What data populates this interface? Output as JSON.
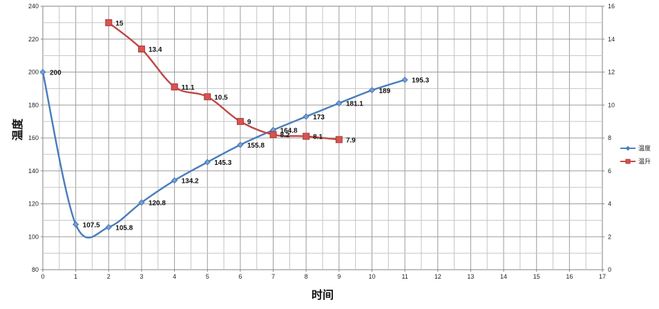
{
  "chart_data": {
    "type": "line",
    "xlabel": "时间",
    "ylabel": "温度",
    "xlim": [
      0,
      17
    ],
    "ylim": [
      80,
      240
    ],
    "y2lim": [
      0,
      16
    ],
    "xticks": [
      "0",
      "1",
      "2",
      "3",
      "4",
      "5",
      "6",
      "7",
      "8",
      "9",
      "10",
      "11",
      "12",
      "13",
      "14",
      "15",
      "16",
      "17"
    ],
    "yticks": [
      "80",
      "100",
      "120",
      "140",
      "160",
      "180",
      "200",
      "220",
      "240"
    ],
    "y2ticks": [
      "0",
      "2",
      "4",
      "6",
      "8",
      "10",
      "12",
      "14",
      "16"
    ],
    "grid": true,
    "legend_position": "right",
    "series": [
      {
        "name": "温度",
        "axis": "left",
        "color": "#4a7ebb",
        "marker": "diamond",
        "x": [
          0,
          1,
          2,
          3,
          4,
          5,
          6,
          7,
          8,
          9,
          10,
          11
        ],
        "values": [
          200,
          107.5,
          105.8,
          120.8,
          134.2,
          145.3,
          155.8,
          164.8,
          173,
          181.1,
          189,
          195.3
        ],
        "labels": [
          "200",
          "107.5",
          "105.8",
          "120.8",
          "134.2",
          "145.3",
          "155.8",
          "164.8",
          "173",
          "181.1",
          "189",
          "195.3"
        ]
      },
      {
        "name": "温升",
        "axis": "right",
        "color": "#be4b48",
        "marker": "square",
        "x": [
          2,
          3,
          4,
          5,
          6,
          7,
          8,
          9
        ],
        "values": [
          15,
          13.4,
          11.1,
          10.5,
          9,
          8.2,
          8.1,
          7.9
        ],
        "labels": [
          "15",
          "13.4",
          "11.1",
          "10.5",
          "9",
          "8.2",
          "8.1",
          "7.9"
        ]
      }
    ]
  }
}
